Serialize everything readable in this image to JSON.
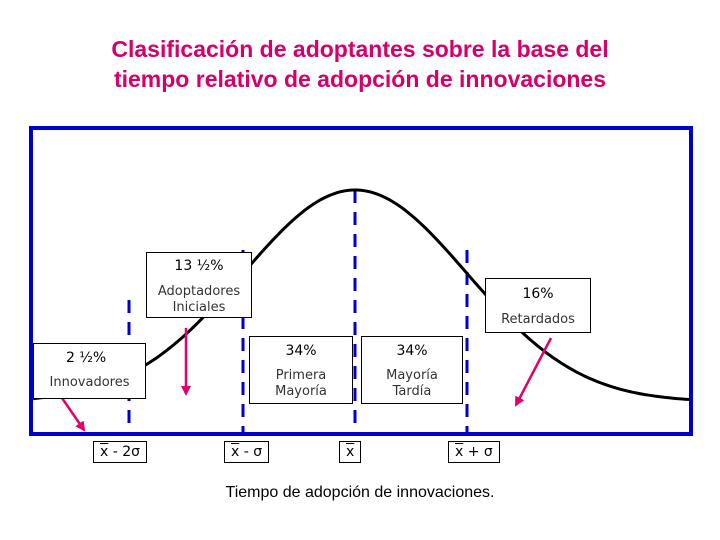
{
  "title": {
    "line1": "Clasificación de adoptantes sobre la base del",
    "line2": "tiempo relativo de adopción de innovaciones"
  },
  "categories": {
    "innovadores": {
      "pct": "2 ½%",
      "label": "Innovadores"
    },
    "adoptadores_iniciales": {
      "pct": "13 ½%",
      "label_line1": "Adoptadores",
      "label_line2": "Iniciales"
    },
    "primera_mayoria": {
      "pct": "34%",
      "label_line1": "Primera",
      "label_line2": "Mayoría"
    },
    "mayoria_tardia": {
      "pct": "34%",
      "label_line1": "Mayoría",
      "label_line2": "Tardía"
    },
    "retardados": {
      "pct": "16%",
      "label": "Retardados"
    }
  },
  "axis_ticks": {
    "minus_two_sigma": {
      "mean": "x",
      "rest": " - 2σ"
    },
    "minus_sigma": {
      "mean": "x",
      "rest": " - σ"
    },
    "mean": {
      "mean": "x",
      "rest": ""
    },
    "plus_sigma": {
      "mean": "x",
      "rest": " + σ"
    }
  },
  "xlabel": "Tiempo de adopción de innovaciones.",
  "colors": {
    "title": "#d6006b",
    "frame": "#0000cc",
    "curve": "#000000",
    "arrows": "#e0006f"
  }
}
